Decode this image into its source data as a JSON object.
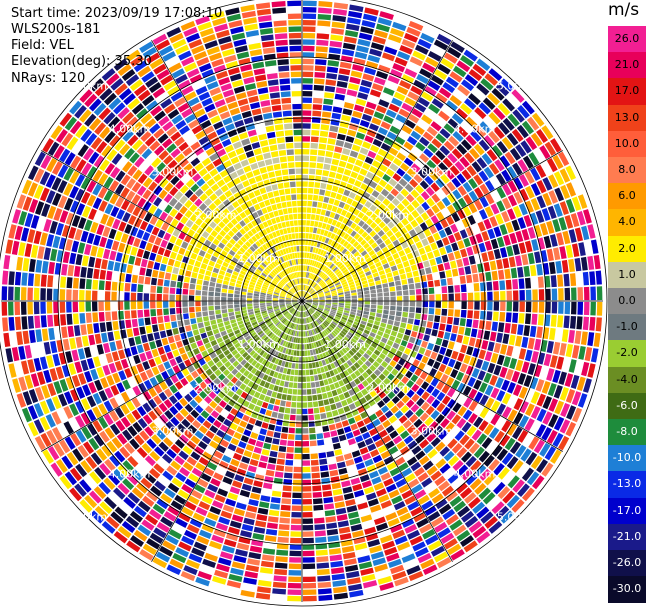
{
  "header": {
    "start_time": "Start time: 2023/09/19 17:08:10",
    "station": "WLS200s-181",
    "field": "Field: VEL",
    "elevation": "Elevation(deg): 35.30",
    "nrays": "NRays: 120"
  },
  "colorbar": {
    "unit": "m/s",
    "segments": [
      {
        "label": "26.0",
        "color": "#f21f93"
      },
      {
        "label": "21.0",
        "color": "#e8005a"
      },
      {
        "label": "17.0",
        "color": "#e31414"
      },
      {
        "label": "13.0",
        "color": "#f0421a"
      },
      {
        "label": "10.0",
        "color": "#ff5e3a"
      },
      {
        "label": "8.0",
        "color": "#ff7c50"
      },
      {
        "label": "6.0",
        "color": "#ff9a00"
      },
      {
        "label": "4.0",
        "color": "#ffb500"
      },
      {
        "label": "2.0",
        "color": "#ffec00"
      },
      {
        "label": "1.0",
        "color": "#c8c8a0"
      },
      {
        "label": "0.0",
        "color": "#8c8c8c"
      },
      {
        "label": "-1.0",
        "color": "#6e7a80"
      },
      {
        "label": "-2.0",
        "color": "#9acd32"
      },
      {
        "label": "-4.0",
        "color": "#6b8e23"
      },
      {
        "label": "-6.0",
        "color": "#3f6b14"
      },
      {
        "label": "-8.0",
        "color": "#1e8c3c"
      },
      {
        "label": "-10.0",
        "color": "#1e7fd6"
      },
      {
        "label": "-13.0",
        "color": "#0a2ae6"
      },
      {
        "label": "-17.0",
        "color": "#0000cd"
      },
      {
        "label": "-21.0",
        "color": "#1a1a8a"
      },
      {
        "label": "-26.0",
        "color": "#10104a"
      },
      {
        "label": "-30.0",
        "color": "#0a0a2a"
      }
    ]
  },
  "range_rings": {
    "labels": [
      "1.00km",
      "2.00km",
      "3.00km",
      "4.00km",
      "5.00km"
    ]
  },
  "chart_data": {
    "type": "heatmap",
    "title": "Start time: 2023/09/19 17:08:10",
    "projection": "polar PPI (azimuth × range)",
    "field": "VEL",
    "units": "m/s",
    "nrays": 120,
    "elevation_deg": 35.3,
    "range_rings_km": [
      1,
      2,
      3,
      4,
      5
    ],
    "color_scale": [
      -30.0,
      -26.0,
      -21.0,
      -17.0,
      -13.0,
      -10.0,
      -8.0,
      -6.0,
      -4.0,
      -2.0,
      -1.0,
      0.0,
      1.0,
      2.0,
      4.0,
      6.0,
      8.0,
      10.0,
      13.0,
      17.0,
      21.0,
      26.0
    ],
    "pattern": {
      "north_sector_near_range_velocity_m_s": 2.0,
      "south_sector_near_range_velocity_m_s": -2.0,
      "zero_band_axis": "west-east",
      "coherent_signal_max_range_km": 2.5,
      "far_range": "noise (random velocities)"
    }
  }
}
